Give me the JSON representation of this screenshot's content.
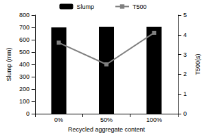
{
  "chart_data": {
    "type": "bar",
    "categories": [
      "0%",
      "50%",
      "100%"
    ],
    "xlabel": "Recycled aggregate content",
    "ylabel": "Slump (mm)",
    "y2label": "T500(s)",
    "ylim": [
      0,
      800
    ],
    "yticks": [
      0,
      100,
      200,
      300,
      400,
      500,
      600,
      700,
      800
    ],
    "y2lim": [
      0,
      5
    ],
    "y2ticks": [
      0,
      1,
      2,
      3,
      4,
      5
    ],
    "grid": false,
    "legend": "top",
    "series": [
      {
        "name": "Slump",
        "type": "bar",
        "color": "#000000",
        "values": [
          700,
          705,
          705
        ]
      },
      {
        "name": "T500",
        "type": "line",
        "color": "#808080",
        "marker": "square",
        "axis": "y2",
        "values": [
          3.6,
          2.5,
          4.1
        ]
      }
    ]
  }
}
